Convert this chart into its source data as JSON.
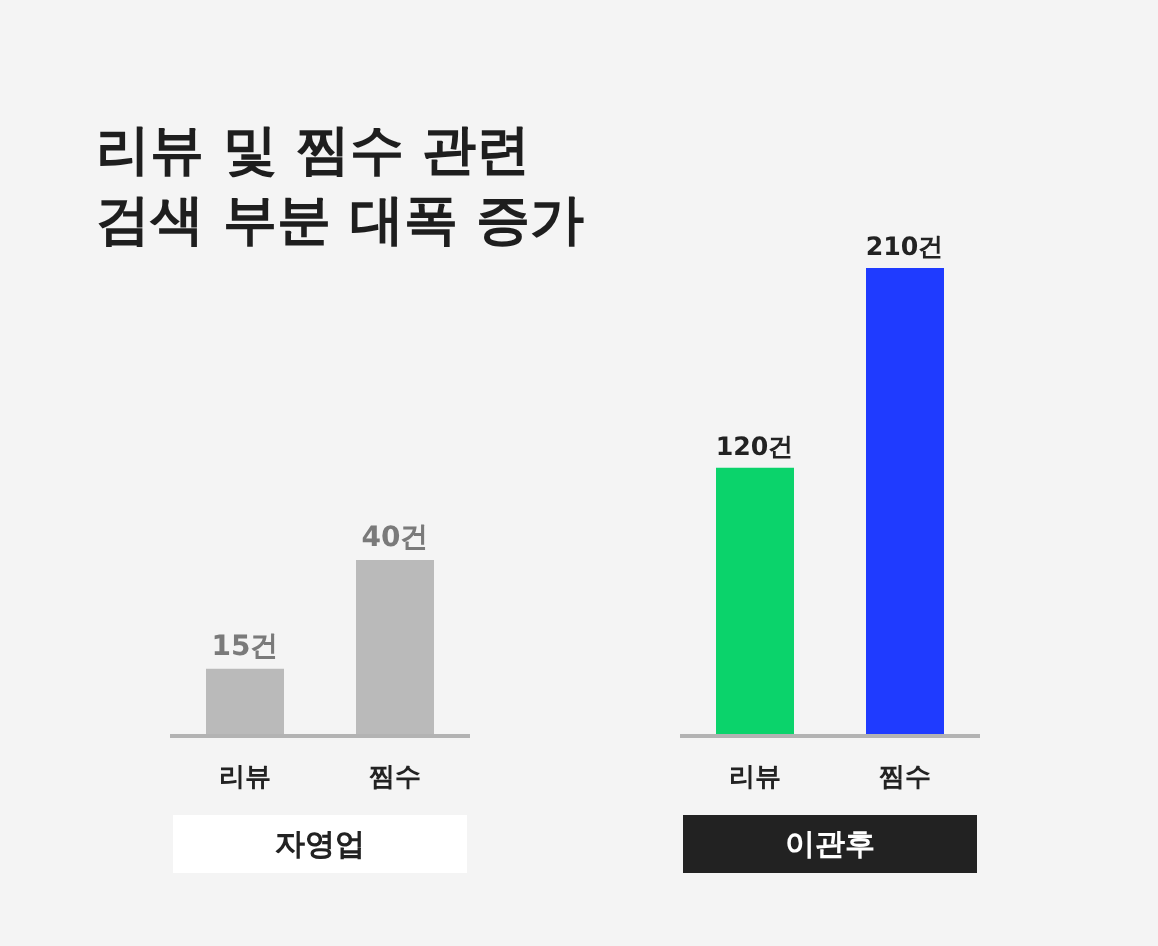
{
  "chart_data": [
    {
      "type": "bar",
      "title": "리뷰 및 찜수 관련\n검색 부분 대폭 증가",
      "xlabel": "자영업",
      "categories": [
        "리뷰",
        "찜수"
      ],
      "values": [
        15,
        40
      ],
      "colors": [
        "#bababa",
        "#bababa"
      ],
      "value_labels": [
        "15건",
        "40건"
      ],
      "tick_labels": "x"
    },
    {
      "type": "bar",
      "xlabel": "이관후",
      "categories": [
        "리뷰",
        "찜수"
      ],
      "values": [
        120,
        210
      ],
      "colors": [
        "#0bd36b",
        "#1f3bff"
      ],
      "value_labels": [
        "120건",
        "210건"
      ],
      "tick_labels": "x"
    }
  ]
}
